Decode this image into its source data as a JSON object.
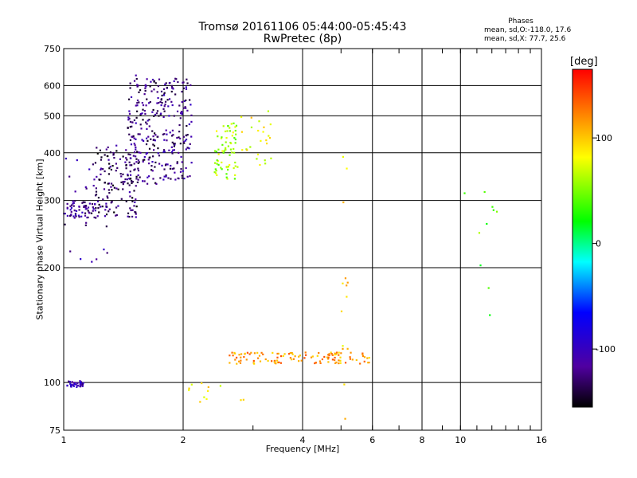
{
  "title_line1": "Tromsø 20161106 05:44:00-05:45:43",
  "title_line2": "RwPretec (8p)",
  "phases": {
    "heading": "Phases",
    "line_o": "mean, sd,O:-118.0, 17.6",
    "line_x": "mean, sd,X:  77.7, 25.6"
  },
  "colorbar": {
    "title": "[deg]",
    "ticks": [
      "100",
      "0",
      "-100"
    ]
  },
  "chart_data": {
    "type": "scatter",
    "title": "Tromsø 20161106 05:44:00-05:45:43",
    "subtitle": "RwPretec (8p)",
    "xlabel": "Frequency [MHz]",
    "ylabel": "Stationary phase Virtual Height [km]",
    "xscale": "log",
    "yscale": "log",
    "xlim": [
      1,
      16
    ],
    "ylim": [
      75,
      750
    ],
    "x_ticks": [
      1,
      2,
      4,
      6,
      8,
      10,
      16
    ],
    "x_tick_labels": [
      "1",
      "2",
      "4",
      "6",
      "8",
      "10",
      "16"
    ],
    "y_ticks": [
      75,
      100,
      200,
      300,
      400,
      500,
      600,
      750
    ],
    "y_tick_labels": [
      "75",
      "100",
      "200",
      "300",
      "400",
      "500",
      "600",
      "750"
    ],
    "grid": true,
    "color_scale": {
      "label": "[deg]",
      "min": -155,
      "max": 165
    },
    "clusters": [
      {
        "name": "o-low",
        "x_range": [
          1.02,
          1.12
        ],
        "y_range": [
          97,
          101
        ],
        "phase": -105,
        "n": 40
      },
      {
        "name": "o-F-base",
        "x_range": [
          1.0,
          1.2
        ],
        "y_range": [
          270,
          300
        ],
        "phase": -120,
        "n": 60
      },
      {
        "name": "o-F-rise",
        "x_range": [
          1.2,
          1.55
        ],
        "y_range": [
          270,
          420
        ],
        "phase": -130,
        "n": 150
      },
      {
        "name": "o-F-upper",
        "x_range": [
          1.45,
          1.75
        ],
        "y_range": [
          330,
          640
        ],
        "phase": -125,
        "n": 160
      },
      {
        "name": "o-F-top",
        "x_range": [
          1.75,
          2.1
        ],
        "y_range": [
          340,
          630
        ],
        "phase": -120,
        "n": 150
      },
      {
        "name": "o-mid",
        "x_range": [
          1.0,
          1.3
        ],
        "y_range": [
          205,
          390
        ],
        "phase": -115,
        "n": 25
      },
      {
        "name": "x-F",
        "x_range": [
          2.4,
          2.75
        ],
        "y_range": [
          340,
          480
        ],
        "phase": 60,
        "n": 70
      },
      {
        "name": "x-F-upper",
        "x_range": [
          2.75,
          3.4
        ],
        "y_range": [
          370,
          540
        ],
        "phase": 80,
        "n": 25
      },
      {
        "name": "e-layer",
        "x_range": [
          2.6,
          5.9
        ],
        "y_range": [
          112,
          120
        ],
        "phase": 115,
        "n": 120
      },
      {
        "name": "scatter-5",
        "x_range": [
          5.0,
          5.2
        ],
        "y_range": [
          80,
          420
        ],
        "phase": 90,
        "n": 14
      },
      {
        "name": "scatter-10",
        "x_range": [
          9.5,
          12.5
        ],
        "y_range": [
          135,
          320
        ],
        "phase": 40,
        "n": 10
      },
      {
        "name": "low-points",
        "x_range": [
          2.0,
          2.9
        ],
        "y_range": [
          88,
          100
        ],
        "phase": 90,
        "n": 12
      }
    ]
  }
}
